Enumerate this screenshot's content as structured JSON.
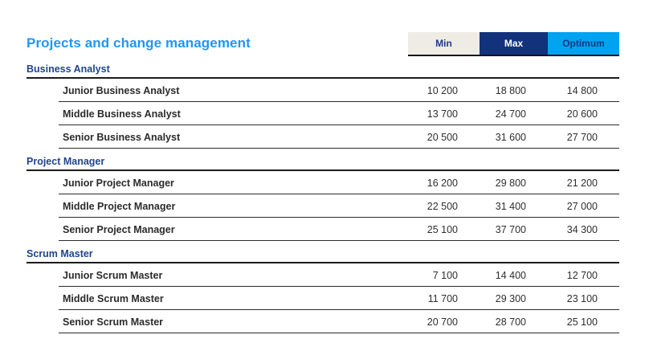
{
  "title": "Projects and change management",
  "colors": {
    "title_accent": "#2196F3",
    "section_heading": "#1F458C",
    "row_text": "#2B2B2B",
    "tab_min_bg": "#EFECE6",
    "tab_min_text": "#1B3C87",
    "tab_max_bg": "#12337C",
    "tab_max_text": "#FFFFFF",
    "tab_optimum_bg": "#00A3EF",
    "tab_optimum_text": "#14357E",
    "header_underline": "#10131C"
  },
  "legend_tabs": [
    {
      "label": "Min"
    },
    {
      "label": "Max"
    },
    {
      "label": "Optimum"
    }
  ],
  "sections": [
    {
      "name": "Business Analyst",
      "rows": [
        {
          "label": "Junior Business Analyst",
          "min": "10 200",
          "max": "18 800",
          "optimum": "14 800"
        },
        {
          "label": "Middle Business Analyst",
          "min": "13 700",
          "max": "24 700",
          "optimum": "20 600"
        },
        {
          "label": "Senior Business Analyst",
          "min": "20 500",
          "max": "31 600",
          "optimum": "27 700"
        }
      ]
    },
    {
      "name": "Project Manager",
      "rows": [
        {
          "label": "Junior Project Manager",
          "min": "16 200",
          "max": "29 800",
          "optimum": "21 200"
        },
        {
          "label": "Middle Project Manager",
          "min": "22 500",
          "max": "31 400",
          "optimum": "27 000"
        },
        {
          "label": "Senior Project Manager",
          "min": "25 100",
          "max": "37 700",
          "optimum": "34 300"
        }
      ]
    },
    {
      "name": "Scrum Master",
      "rows": [
        {
          "label": "Junior Scrum Master",
          "min": "7 100",
          "max": "14 400",
          "optimum": "12 700"
        },
        {
          "label": "Middle Scrum Master",
          "min": "11 700",
          "max": "29 300",
          "optimum": "23 100"
        },
        {
          "label": "Senior Scrum Master",
          "min": "20 700",
          "max": "28 700",
          "optimum": "25 100"
        }
      ]
    }
  ],
  "chart_data": {
    "type": "table",
    "title": "Projects and change management",
    "columns": [
      "Min",
      "Max",
      "Optimum"
    ],
    "groups": [
      {
        "name": "Business Analyst",
        "rows": [
          {
            "label": "Junior Business Analyst",
            "values": [
              10200,
              18800,
              14800
            ]
          },
          {
            "label": "Middle Business Analyst",
            "values": [
              13700,
              24700,
              20600
            ]
          },
          {
            "label": "Senior Business Analyst",
            "values": [
              20500,
              31600,
              27700
            ]
          }
        ]
      },
      {
        "name": "Project Manager",
        "rows": [
          {
            "label": "Junior Project Manager",
            "values": [
              16200,
              29800,
              21200
            ]
          },
          {
            "label": "Middle Project Manager",
            "values": [
              22500,
              31400,
              27000
            ]
          },
          {
            "label": "Senior Project Manager",
            "values": [
              25100,
              37700,
              34300
            ]
          }
        ]
      },
      {
        "name": "Scrum Master",
        "rows": [
          {
            "label": "Junior Scrum Master",
            "values": [
              7100,
              14400,
              12700
            ]
          },
          {
            "label": "Middle Scrum Master",
            "values": [
              11700,
              29300,
              23100
            ]
          },
          {
            "label": "Senior Scrum Master",
            "values": [
              20700,
              28700,
              25100
            ]
          }
        ]
      }
    ]
  }
}
